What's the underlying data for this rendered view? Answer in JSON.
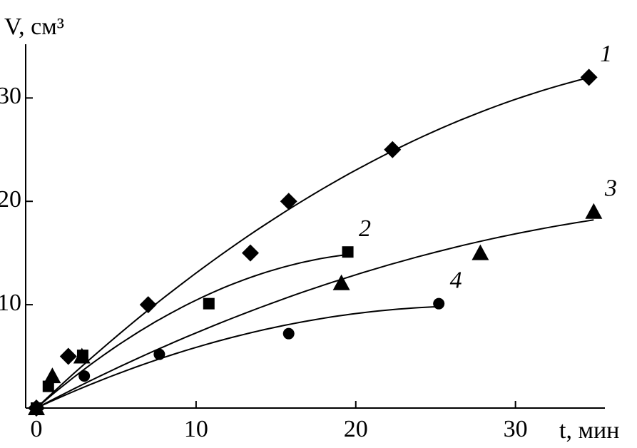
{
  "chart_data": {
    "type": "scatter",
    "x_label": "t, мин",
    "y_label": "V, см³",
    "xlim": [
      -0.67,
      35.6
    ],
    "ylim": [
      0,
      35.2
    ],
    "xticks": [
      0,
      10,
      20,
      30
    ],
    "yticks": [
      10,
      20,
      30
    ],
    "fit_curves": true,
    "series": [
      {
        "name": "1",
        "color": "#000000",
        "marker": "diamond",
        "x": [
          0,
          2.0,
          7.0,
          13.4,
          15.8,
          22.3,
          34.6
        ],
        "values": [
          0,
          5,
          10,
          15,
          20,
          25,
          32
        ]
      },
      {
        "name": "2",
        "color": "#000000",
        "marker": "square",
        "x": [
          0,
          0.75,
          2.9,
          10.8,
          19.5
        ],
        "values": [
          0,
          2.1,
          5.1,
          10.1,
          15.1
        ]
      },
      {
        "name": "3",
        "color": "#000000",
        "marker": "triangle",
        "x": [
          0,
          1.0,
          2.85,
          19.1,
          27.8,
          34.9
        ],
        "values": [
          0,
          3.1,
          5,
          12.1,
          15,
          19
        ]
      },
      {
        "name": "4",
        "color": "#000000",
        "marker": "circle",
        "x": [
          0,
          3.0,
          7.7,
          15.8,
          25.2
        ],
        "values": [
          0,
          3.1,
          5.2,
          7.2,
          10.1
        ]
      }
    ]
  }
}
